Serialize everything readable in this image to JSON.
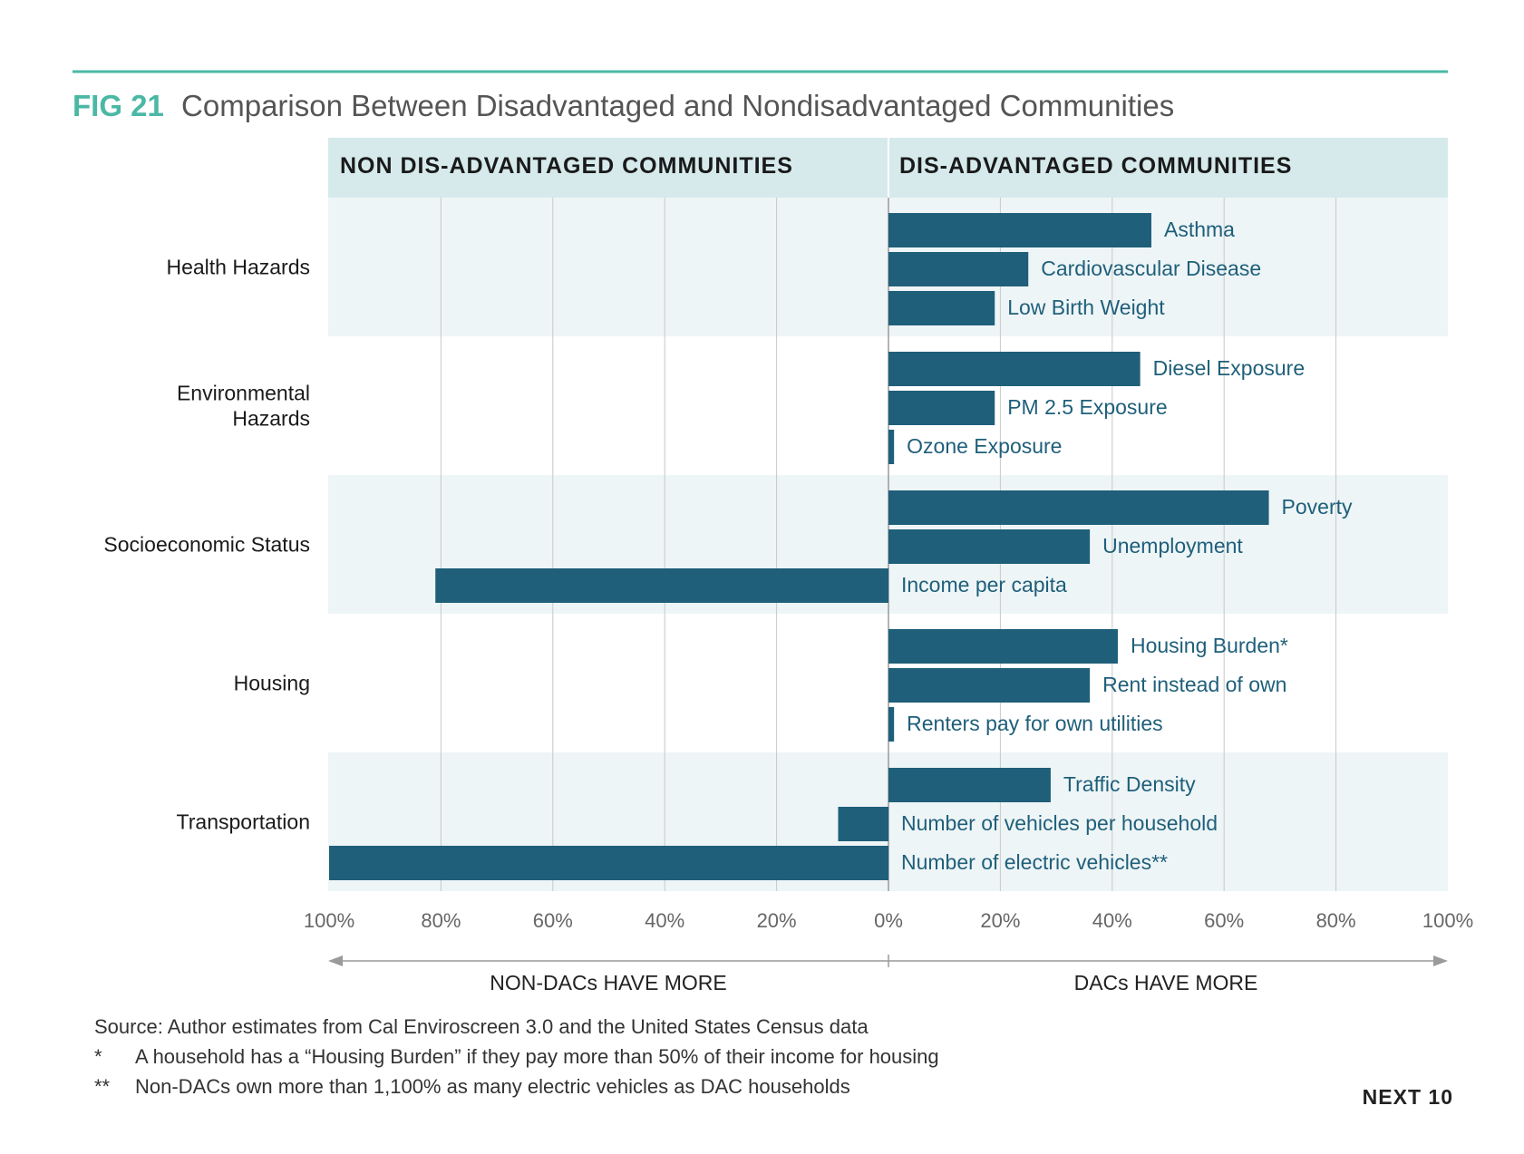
{
  "figure": {
    "number": "FIG 21",
    "title": "Comparison Between Disadvantaged and Nondisadvantaged Communities"
  },
  "headers": {
    "left": "NON DIS-ADVANTAGED COMMUNITIES",
    "right": "DIS-ADVANTAGED COMMUNITIES"
  },
  "direction_labels": {
    "left": "NON-DACs HAVE MORE",
    "right": "DACs HAVE MORE"
  },
  "notes": {
    "source": "Source: Author estimates from Cal Enviroscreen 3.0 and the United States Census data",
    "footnote1_mark": "*",
    "footnote1": "A household has a “Housing Burden” if they pay more than 50% of their income for housing",
    "footnote2_mark": "**",
    "footnote2": "Non-DACs own more than 1,100% as many electric vehicles as DAC households"
  },
  "brand": "NEXT 10",
  "colors": {
    "accent": "#4ab8a5",
    "bar": "#1f5f7a",
    "label": "#1f5f7a",
    "header_bg": "#d6eaec",
    "band_bg": "#eef5f7",
    "grid": "#c8c8c8",
    "title_text": "#555555"
  },
  "chart_data": {
    "type": "bar",
    "orientation": "horizontal",
    "xlim": [
      -100,
      100
    ],
    "x_ticks": [
      -100,
      -80,
      -60,
      -40,
      -20,
      0,
      20,
      40,
      60,
      80,
      100
    ],
    "x_tick_labels": [
      "100%",
      "80%",
      "60%",
      "40%",
      "20%",
      "0%",
      "20%",
      "40%",
      "60%",
      "80%",
      "100%"
    ],
    "grid": true,
    "groups": [
      {
        "name": "Health Hazards",
        "items": [
          {
            "label": "Asthma",
            "value": 47
          },
          {
            "label": "Cardiovascular Disease",
            "value": 25
          },
          {
            "label": "Low Birth Weight",
            "value": 19
          }
        ]
      },
      {
        "name": "Environmental Hazards",
        "items": [
          {
            "label": "Diesel Exposure",
            "value": 45
          },
          {
            "label": "PM 2.5 Exposure",
            "value": 19
          },
          {
            "label": "Ozone Exposure",
            "value": 1
          }
        ]
      },
      {
        "name": "Socioeconomic Status",
        "items": [
          {
            "label": "Poverty",
            "value": 68
          },
          {
            "label": "Unemployment",
            "value": 36
          },
          {
            "label": "Income per capita",
            "value": -81
          }
        ]
      },
      {
        "name": "Housing",
        "items": [
          {
            "label": "Housing Burden*",
            "value": 41
          },
          {
            "label": "Rent instead of own",
            "value": 36
          },
          {
            "label": "Renters pay for own utilities",
            "value": 1
          }
        ]
      },
      {
        "name": "Transportation",
        "items": [
          {
            "label": "Traffic Density",
            "value": 29
          },
          {
            "label": "Number of vehicles per household",
            "value": -9
          },
          {
            "label": "Number of electric vehicles**",
            "value": -100
          }
        ]
      }
    ]
  }
}
